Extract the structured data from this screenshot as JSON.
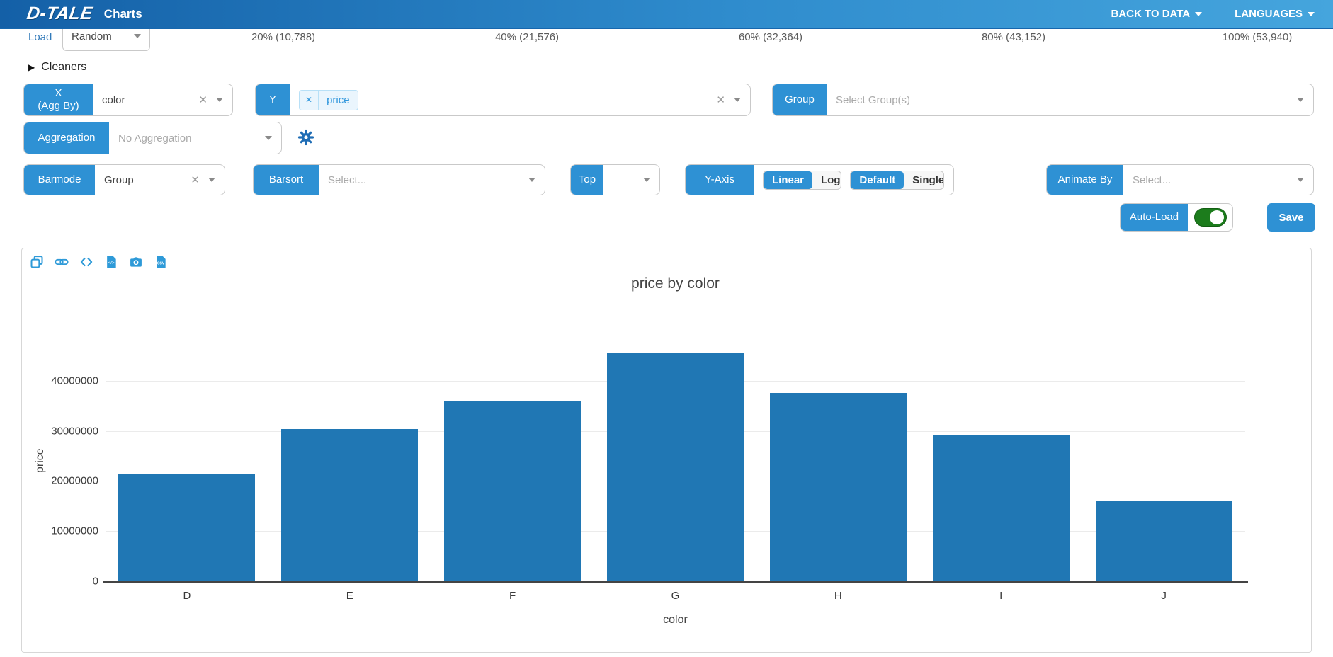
{
  "navbar": {
    "logo": "D-TALE",
    "title": "Charts",
    "items": [
      {
        "label": "BACK TO DATA"
      },
      {
        "label": "LANGUAGES"
      }
    ]
  },
  "load_row": {
    "label": "Load",
    "dataset": "Random",
    "marks": [
      "20% (10,788)",
      "40% (21,576)",
      "60% (32,364)",
      "80% (43,152)",
      "100% (53,940)"
    ]
  },
  "cleaners": {
    "label": "Cleaners"
  },
  "controls": {
    "x": {
      "label_line1": "X",
      "label_line2": "(Agg By)",
      "value": "color"
    },
    "y": {
      "label": "Y",
      "tags": [
        {
          "label": "price"
        }
      ]
    },
    "group": {
      "label": "Group",
      "placeholder": "Select Group(s)"
    },
    "aggregation": {
      "label": "Aggregation",
      "value": "No Aggregation"
    },
    "barmode": {
      "label": "Barmode",
      "value": "Group"
    },
    "barsort": {
      "label": "Barsort",
      "placeholder": "Select..."
    },
    "top": {
      "label": "Top"
    },
    "yaxis": {
      "label": "Y-Axis",
      "scale_options": [
        "Linear",
        "Log"
      ],
      "scale_selected": "Linear",
      "mode_options": [
        "Default",
        "Single"
      ],
      "mode_selected": "Default"
    },
    "animate_by": {
      "label": "Animate By",
      "placeholder": "Select..."
    },
    "auto_load": {
      "label": "Auto-Load",
      "enabled": true
    },
    "save": {
      "label": "Save"
    }
  },
  "chart_toolbar": {
    "icons": [
      "copy-icon",
      "link-icon",
      "code-export-icon",
      "html-export-icon",
      "camera-icon",
      "csv-export-icon"
    ]
  },
  "chart_data": {
    "type": "bar",
    "title": "price by color",
    "categories": [
      "D",
      "E",
      "F",
      "G",
      "H",
      "I",
      "J"
    ],
    "values": [
      21500000,
      30400000,
      35800000,
      45400000,
      37500000,
      29200000,
      16000000
    ],
    "xlabel": "color",
    "ylabel": "price",
    "yticks": [
      0,
      10000000,
      20000000,
      30000000,
      40000000
    ],
    "ylim": [
      0,
      48000000
    ],
    "grid": true,
    "legend": "none",
    "bar_color": "#2077b4"
  },
  "colors": {
    "accent": "#2e91d4",
    "toolbar_icon": "#2e9ad8",
    "toggle_on": "#1c7c1c",
    "bar": "#2077b4",
    "navbar_left": "#1460a7",
    "navbar_right": "#45a5dd"
  }
}
